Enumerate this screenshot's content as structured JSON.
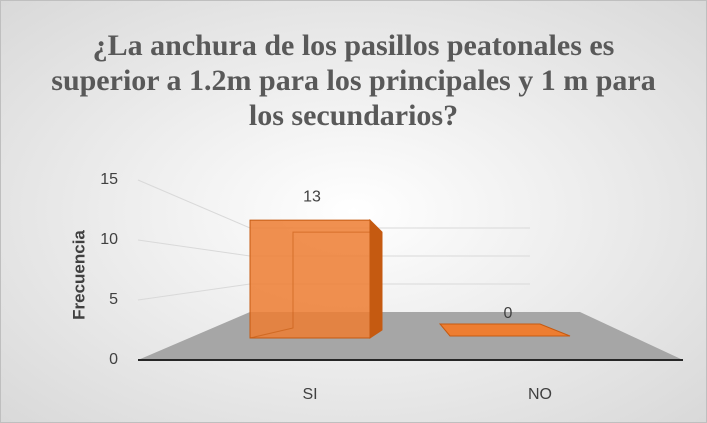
{
  "chart_data": {
    "type": "bar3d",
    "title": "¿La anchura de los pasillos peatonales es superior a 1.2m para los principales y 1 m para los secundarios?",
    "y_label": "Frecuencia",
    "categories": [
      "SI",
      "NO"
    ],
    "values": [
      13,
      0
    ],
    "color": "#ed7d31",
    "ylim": [
      0,
      15
    ],
    "yticks": [
      0,
      5,
      10,
      15
    ],
    "grid": true
  }
}
